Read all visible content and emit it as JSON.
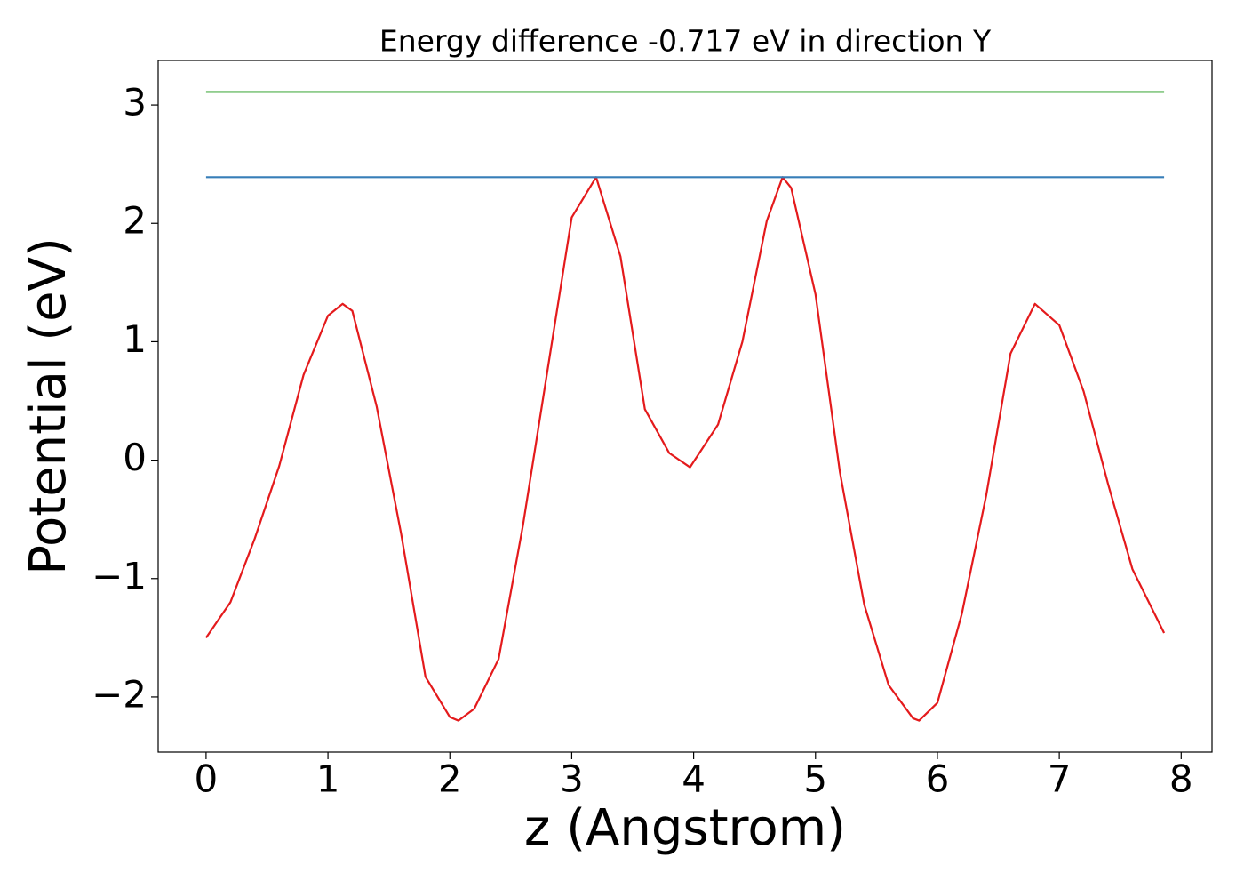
{
  "chart_data": {
    "type": "line",
    "title": "Energy difference -0.717 eV in direction Y",
    "xlabel": "z (Angstrom)",
    "ylabel": "Potential (eV)",
    "series": [
      {
        "color": "#e41a1c",
        "x": [
          0,
          0.2,
          0.4,
          0.6,
          0.8,
          1.0,
          1.12,
          1.2,
          1.4,
          1.6,
          1.8,
          2.0,
          2.07,
          2.2,
          2.4,
          2.6,
          2.8,
          3.0,
          3.2,
          3.4,
          3.6,
          3.8,
          3.97,
          4.2,
          4.4,
          4.6,
          4.73,
          4.8,
          5.0,
          5.2,
          5.4,
          5.6,
          5.8,
          5.85,
          6.0,
          6.2,
          6.4,
          6.6,
          6.8,
          7.0,
          7.2,
          7.4,
          7.6,
          7.86
        ],
        "values": [
          -1.5,
          -1.2,
          -0.66,
          -0.05,
          0.72,
          1.22,
          1.32,
          1.26,
          0.45,
          -0.62,
          -1.83,
          -2.17,
          -2.2,
          -2.1,
          -1.68,
          -0.55,
          0.75,
          2.05,
          2.39,
          1.72,
          0.43,
          0.06,
          -0.06,
          0.3,
          1.0,
          2.02,
          2.39,
          2.3,
          1.4,
          -0.1,
          -1.22,
          -1.9,
          -2.18,
          -2.2,
          -2.05,
          -1.3,
          -0.3,
          0.9,
          1.32,
          1.14,
          0.58,
          -0.2,
          -0.92,
          -1.46
        ]
      },
      {
        "color": "#377eb8",
        "x": [
          0,
          7.86
        ],
        "values": [
          2.39,
          2.39
        ]
      },
      {
        "color": "#4daf4a",
        "x": [
          0,
          7.86
        ],
        "values": [
          3.11,
          3.11
        ]
      }
    ],
    "xlim": [
      -0.393,
      8.253
    ],
    "ylim": [
      -2.466,
      3.376
    ],
    "xticks": [
      0,
      1,
      2,
      3,
      4,
      5,
      6,
      7,
      8
    ],
    "yticks": [
      {
        "value": -2,
        "label": "−2"
      },
      {
        "value": -1,
        "label": "−1"
      },
      0,
      1,
      2,
      3
    ]
  }
}
